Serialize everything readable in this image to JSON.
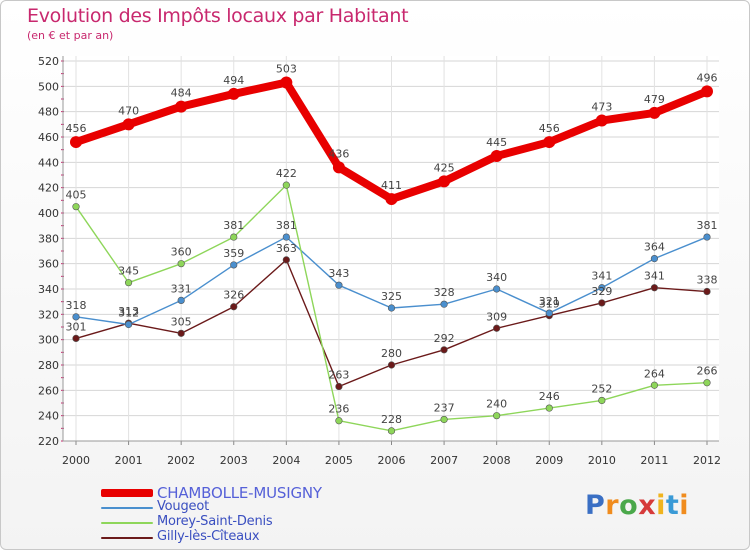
{
  "title": "Evolution des Impôts locaux par Habitant",
  "subtitle": "(en € et par an)",
  "logo": {
    "text": "Proxiti",
    "letters": [
      "P",
      "r",
      "o",
      "x",
      "i",
      "t",
      "i"
    ],
    "colors": [
      "#3a6fc4",
      "#f08c1e",
      "#4aa84a",
      "#d63a3a",
      "#f0b41e",
      "#3a9ad6",
      "#f08c1e"
    ]
  },
  "chart_data": {
    "type": "line",
    "title": "Evolution des Impôts locaux par Habitant",
    "ylabel": "(en € et par an)",
    "categories": [
      "2000",
      "2001",
      "2002",
      "2003",
      "2004",
      "2005",
      "2006",
      "2007",
      "2008",
      "2009",
      "2010",
      "2011",
      "2012"
    ],
    "ylim": [
      220,
      520
    ],
    "yticks": [
      220,
      240,
      260,
      280,
      300,
      320,
      340,
      360,
      380,
      400,
      420,
      440,
      460,
      480,
      500,
      520
    ],
    "grid": true,
    "legend_position": "bottom-left",
    "series": [
      {
        "name": "CHAMBOLLE-MUSIGNY",
        "color": "#e80000",
        "values": [
          456,
          470,
          484,
          494,
          503,
          436,
          411,
          425,
          445,
          456,
          473,
          479,
          496
        ]
      },
      {
        "name": "Vougeot",
        "color": "#4a8fce",
        "values": [
          318,
          312,
          331,
          359,
          381,
          343,
          325,
          328,
          340,
          321,
          341,
          364,
          381
        ]
      },
      {
        "name": "Morey-Saint-Denis",
        "color": "#8ed65a",
        "values": [
          405,
          345,
          360,
          381,
          422,
          236,
          228,
          237,
          240,
          246,
          252,
          264,
          266
        ]
      },
      {
        "name": "Gilly-lès-Cîteaux",
        "color": "#6b1a1a",
        "values": [
          301,
          313,
          305,
          326,
          363,
          263,
          280,
          292,
          309,
          319,
          329,
          341,
          338
        ]
      }
    ]
  }
}
